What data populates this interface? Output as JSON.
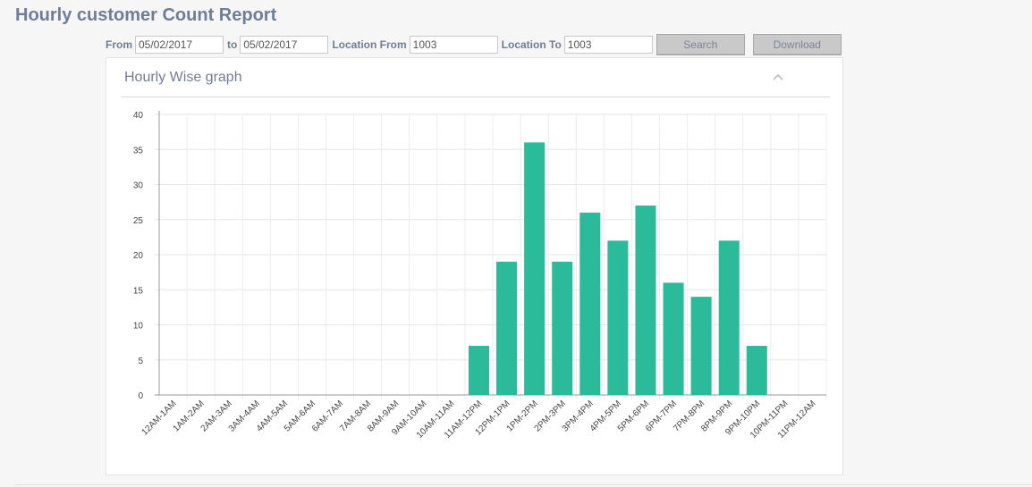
{
  "page": {
    "title": "Hourly customer Count Report"
  },
  "filters": {
    "from_label": "From",
    "from_value": "05/02/2017",
    "to_label": "to",
    "to_value": "05/02/2017",
    "location_from_label": "Location From",
    "location_from_value": "1003",
    "location_to_label": "Location To",
    "location_to_value": "1003",
    "search_label": "Search",
    "download_label": "Download"
  },
  "panel": {
    "title": "Hourly Wise graph",
    "collapse_icon": "chevron-up-icon"
  },
  "colors": {
    "bar": "#2bbb9a",
    "title": "#6f7e95"
  },
  "chart_data": {
    "type": "bar",
    "categories": [
      "12AM-1AM",
      "1AM-2AM",
      "2AM-3AM",
      "3AM-4AM",
      "4AM-5AM",
      "5AM-6AM",
      "6AM-7AM",
      "7AM-8AM",
      "8AM-9AM",
      "9AM-10AM",
      "10AM-11AM",
      "11AM-12PM",
      "12PM-1PM",
      "1PM-2PM",
      "2PM-3PM",
      "3PM-4PM",
      "4PM-5PM",
      "5PM-6PM",
      "6PM-7PM",
      "7PM-8PM",
      "8PM-9PM",
      "9PM-10PM",
      "10PM-11PM",
      "11PM-12AM"
    ],
    "values": [
      0,
      0,
      0,
      0,
      0,
      0,
      0,
      0,
      0,
      0,
      0,
      7,
      19,
      36,
      19,
      26,
      22,
      27,
      16,
      14,
      22,
      7,
      0,
      0
    ],
    "ylim": [
      0,
      40
    ],
    "yticks": [
      0,
      5,
      10,
      15,
      20,
      25,
      30,
      35,
      40
    ],
    "grid": true,
    "legend": "none"
  }
}
